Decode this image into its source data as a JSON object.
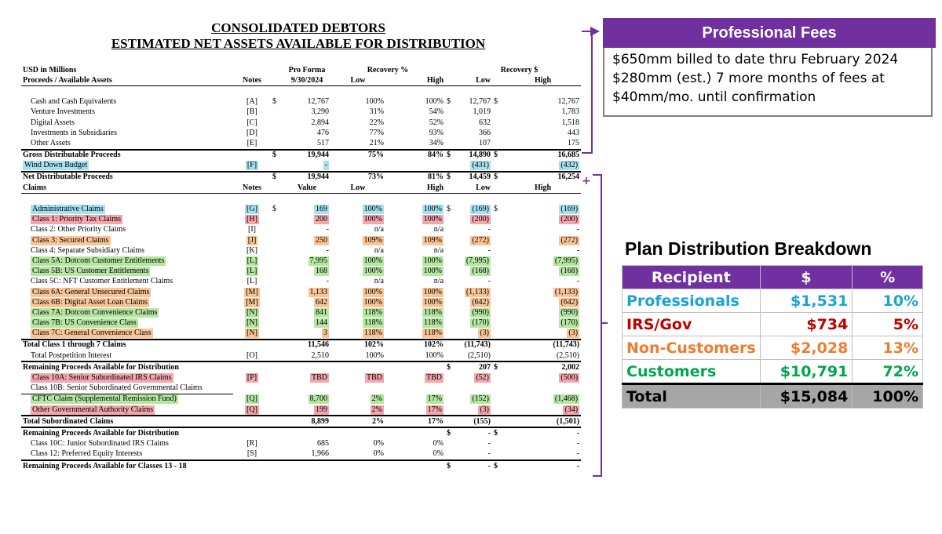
{
  "title1": "CONSOLIDATED DEBTORS",
  "title2": "ESTIMATED NET ASSETS AVAILABLE FOR DISTRIBUTION",
  "hdr": {
    "units": "USD in Millions",
    "pro_forma": "Pro Forma",
    "recovery_pct": "Recovery %",
    "recovery_usd": "Recovery $"
  },
  "hdr2": {
    "label": "Proceeds / Available Assets",
    "notes": "Notes",
    "date": "9/30/2024",
    "low": "Low",
    "high": "High",
    "low2": "Low",
    "high2": "High"
  },
  "assets": [
    {
      "label": "Cash and Cash Equivalents",
      "note": "[A]",
      "cur": "$",
      "val": "12,767",
      "low": "100%",
      "high": "100%",
      "cur2": "$",
      "rlow": "12,767",
      "cur3": "$",
      "rhigh": "12,767"
    },
    {
      "label": "Venture Investments",
      "note": "[B]",
      "cur": "",
      "val": "3,290",
      "low": "31%",
      "high": "54%",
      "cur2": "",
      "rlow": "1,019",
      "cur3": "",
      "rhigh": "1,783"
    },
    {
      "label": "Digital Assets",
      "note": "[C]",
      "cur": "",
      "val": "2,894",
      "low": "22%",
      "high": "52%",
      "cur2": "",
      "rlow": "632",
      "cur3": "",
      "rhigh": "1,518"
    },
    {
      "label": "Investments in Subsidiaries",
      "note": "[D]",
      "cur": "",
      "val": "476",
      "low": "77%",
      "high": "93%",
      "cur2": "",
      "rlow": "366",
      "cur3": "",
      "rhigh": "443"
    },
    {
      "label": "Other Assets",
      "note": "[E]",
      "cur": "",
      "val": "517",
      "low": "21%",
      "high": "34%",
      "cur2": "",
      "rlow": "107",
      "cur3": "",
      "rhigh": "175"
    }
  ],
  "gross": {
    "label": "Gross Distributable Proceeds",
    "cur": "$",
    "val": "19,944",
    "low": "75%",
    "high": "84%",
    "cur2": "$",
    "rlow": "14,890",
    "cur3": "$",
    "rhigh": "16,685"
  },
  "wind": {
    "label": "Wind Down Budget",
    "note": "[F]",
    "val": "-",
    "rlow": "(431)",
    "rhigh": "(432)"
  },
  "net": {
    "label": "Net Distributable Proceeds",
    "cur": "$",
    "val": "19,944",
    "low": "73%",
    "high": "81%",
    "cur2": "$",
    "rlow": "14,459",
    "cur3": "$",
    "rhigh": "16,254"
  },
  "claims_hdr": {
    "label": "Claims",
    "notes": "Notes",
    "value": "Value",
    "low": "Low",
    "high": "High",
    "low2": "Low",
    "high2": "High"
  },
  "claims": [
    {
      "label": "Administrative Claims",
      "note": "[G]",
      "cur": "$",
      "val": "169",
      "low": "100%",
      "high": "100%",
      "cur2": "$",
      "rlow": "(169)",
      "cur3": "$",
      "rhigh": "(169)",
      "hl": "bl"
    },
    {
      "label": "Class 1: Priority Tax Claims",
      "note": "[H]",
      "cur": "",
      "val": "200",
      "low": "100%",
      "high": "100%",
      "cur2": "",
      "rlow": "(200)",
      "cur3": "",
      "rhigh": "(200)",
      "hl": "rd"
    },
    {
      "label": "Class 2: Other Priority Claims",
      "note": "[I]",
      "cur": "",
      "val": "-",
      "low": "n/a",
      "high": "n/a",
      "cur2": "",
      "rlow": "-",
      "cur3": "",
      "rhigh": "-",
      "hl": ""
    },
    {
      "label": "Class 3: Secured Claims",
      "note": "[J]",
      "cur": "",
      "val": "250",
      "low": "109%",
      "high": "109%",
      "cur2": "",
      "rlow": "(272)",
      "cur3": "",
      "rhigh": "(272)",
      "hl": "or"
    },
    {
      "label": "Class 4: Separate Subsidiary Claims",
      "note": "[K]",
      "cur": "",
      "val": "-",
      "low": "n/a",
      "high": "n/a",
      "cur2": "",
      "rlow": "-",
      "cur3": "",
      "rhigh": "-",
      "hl": ""
    },
    {
      "label": "Class 5A: Dotcom Customer Entitlements",
      "note": "[L]",
      "cur": "",
      "val": "7,995",
      "low": "100%",
      "high": "100%",
      "cur2": "",
      "rlow": "(7,995)",
      "cur3": "",
      "rhigh": "(7,995)",
      "hl": "gr"
    },
    {
      "label": "Class 5B: US Customer Entitlements",
      "note": "[L]",
      "cur": "",
      "val": "168",
      "low": "100%",
      "high": "100%",
      "cur2": "",
      "rlow": "(168)",
      "cur3": "",
      "rhigh": "(168)",
      "hl": "gr"
    },
    {
      "label": "Class 5C: NFT Customer Entitlement Claims",
      "note": "[L]",
      "cur": "",
      "val": "-",
      "low": "n/a",
      "high": "n/a",
      "cur2": "",
      "rlow": "-",
      "cur3": "",
      "rhigh": "-",
      "hl": ""
    },
    {
      "label": "Class 6A: General Unsecured Claims",
      "note": "[M]",
      "cur": "",
      "val": "1,133",
      "low": "100%",
      "high": "100%",
      "cur2": "",
      "rlow": "(1,133)",
      "cur3": "",
      "rhigh": "(1,133)",
      "hl": "or"
    },
    {
      "label": "Class 6B: Digital Asset Loan Claims",
      "note": "[M]",
      "cur": "",
      "val": "642",
      "low": "100%",
      "high": "100%",
      "cur2": "",
      "rlow": "(642)",
      "cur3": "",
      "rhigh": "(642)",
      "hl": "or"
    },
    {
      "label": "Class 7A: Dotcom Convenience Claims",
      "note": "[N]",
      "cur": "",
      "val": "841",
      "low": "118%",
      "high": "118%",
      "cur2": "",
      "rlow": "(990)",
      "cur3": "",
      "rhigh": "(990)",
      "hl": "gr"
    },
    {
      "label": "Class 7B: US Convenience Class",
      "note": "[N]",
      "cur": "",
      "val": "144",
      "low": "118%",
      "high": "118%",
      "cur2": "",
      "rlow": "(170)",
      "cur3": "",
      "rhigh": "(170)",
      "hl": "gr"
    },
    {
      "label": "Class 7C: General Convenience Class",
      "note": "[N]",
      "cur": "",
      "val": "3",
      "low": "118%",
      "high": "118%",
      "cur2": "",
      "rlow": "(3)",
      "cur3": "",
      "rhigh": "(3)",
      "hl": "or"
    }
  ],
  "total_class": {
    "label": "Total Class 1 through 7 Claims",
    "val": "11,546",
    "low": "102%",
    "high": "102%",
    "rlow": "(11,743)",
    "rhigh": "(11,743)"
  },
  "postpet": {
    "label": "Total Postpetition Interest",
    "note": "[O]",
    "val": "2,510",
    "low": "100%",
    "high": "100%",
    "rlow": "(2,510)",
    "rhigh": "(2,510)"
  },
  "remain1": {
    "label": "Remaining Proceeds Available for Distribution",
    "cur2": "$",
    "rlow": "207",
    "cur3": "$",
    "rhigh": "2,002"
  },
  "c10a": {
    "label": "Class 10A: Senior Subordinated IRS Claims",
    "note": "[P]",
    "val": "TBD",
    "low": "TBD",
    "high": "TBD",
    "rlow": "(52)",
    "rhigh": "(500)"
  },
  "c10b": {
    "label": "Class 10B: Senior Subordinated Governmental Claims"
  },
  "cftc": {
    "label": "CFTC Claim (Supplemental Remission Fund)",
    "note": "[Q]",
    "val": "8,700",
    "low": "2%",
    "high": "17%",
    "rlow": "(152)",
    "rhigh": "(1,468)"
  },
  "othergov": {
    "label": "Other Governmental Authority Claims",
    "note": "[Q]",
    "val": "199",
    "low": "2%",
    "high": "17%",
    "rlow": "(3)",
    "rhigh": "(34)"
  },
  "totsub": {
    "label": "Total Subordinated Claims",
    "val": "8,899",
    "low": "2%",
    "high": "17%",
    "rlow": "(155)",
    "rhigh": "(1,501)"
  },
  "remain2": {
    "label": "Remaining Proceeds Available for Distribution",
    "cur2": "$",
    "rlow": "-",
    "cur3": "$",
    "rhigh": "-"
  },
  "c10c": {
    "label": "Class 10C: Junior Subordinated IRS Claims",
    "note": "[R]",
    "val": "685",
    "low": "0%",
    "high": "0%",
    "rlow": "-",
    "rhigh": "-"
  },
  "c12": {
    "label": "Class 12: Preferred Equity Interests",
    "note": "[S]",
    "val": "1,966",
    "low": "0%",
    "high": "0%",
    "rlow": "-",
    "rhigh": "-"
  },
  "remain3": {
    "label": "Remaining Proceeds Available for Classes 13 - 18",
    "cur2": "$",
    "rlow": "-",
    "cur3": "$",
    "rhigh": "-"
  },
  "plus": "+",
  "prof": {
    "title": "Professional Fees",
    "line1": "$650mm billed to date thru February 2024",
    "line2": "$280mm (est.) 7 more months of fees at",
    "line3": "$40mm/mo. until confirmation"
  },
  "plan": {
    "title": "Plan Distribution Breakdown",
    "headers": [
      "Recipient",
      "$",
      "%"
    ],
    "rows": [
      {
        "name": "Professionals",
        "amt": "$1,531",
        "pct": "10%",
        "color": "#1ba3d8"
      },
      {
        "name": "IRS/Gov",
        "amt": "$734",
        "pct": "5%",
        "color": "#c00000"
      },
      {
        "name": "Non-Customers",
        "amt": "$2,028",
        "pct": "13%",
        "color": "#ed7d31"
      },
      {
        "name": "Customers",
        "amt": "$10,791",
        "pct": "72%",
        "color": "#00a650"
      }
    ],
    "total": {
      "name": "Total",
      "amt": "$15,084",
      "pct": "100%"
    }
  },
  "colors": {
    "purple": "#7030a0",
    "blue_hl": "#a6e1f0",
    "red_hl": "#f4a6ad",
    "orange_hl": "#f9c596",
    "green_hl": "#b5e6a2"
  }
}
